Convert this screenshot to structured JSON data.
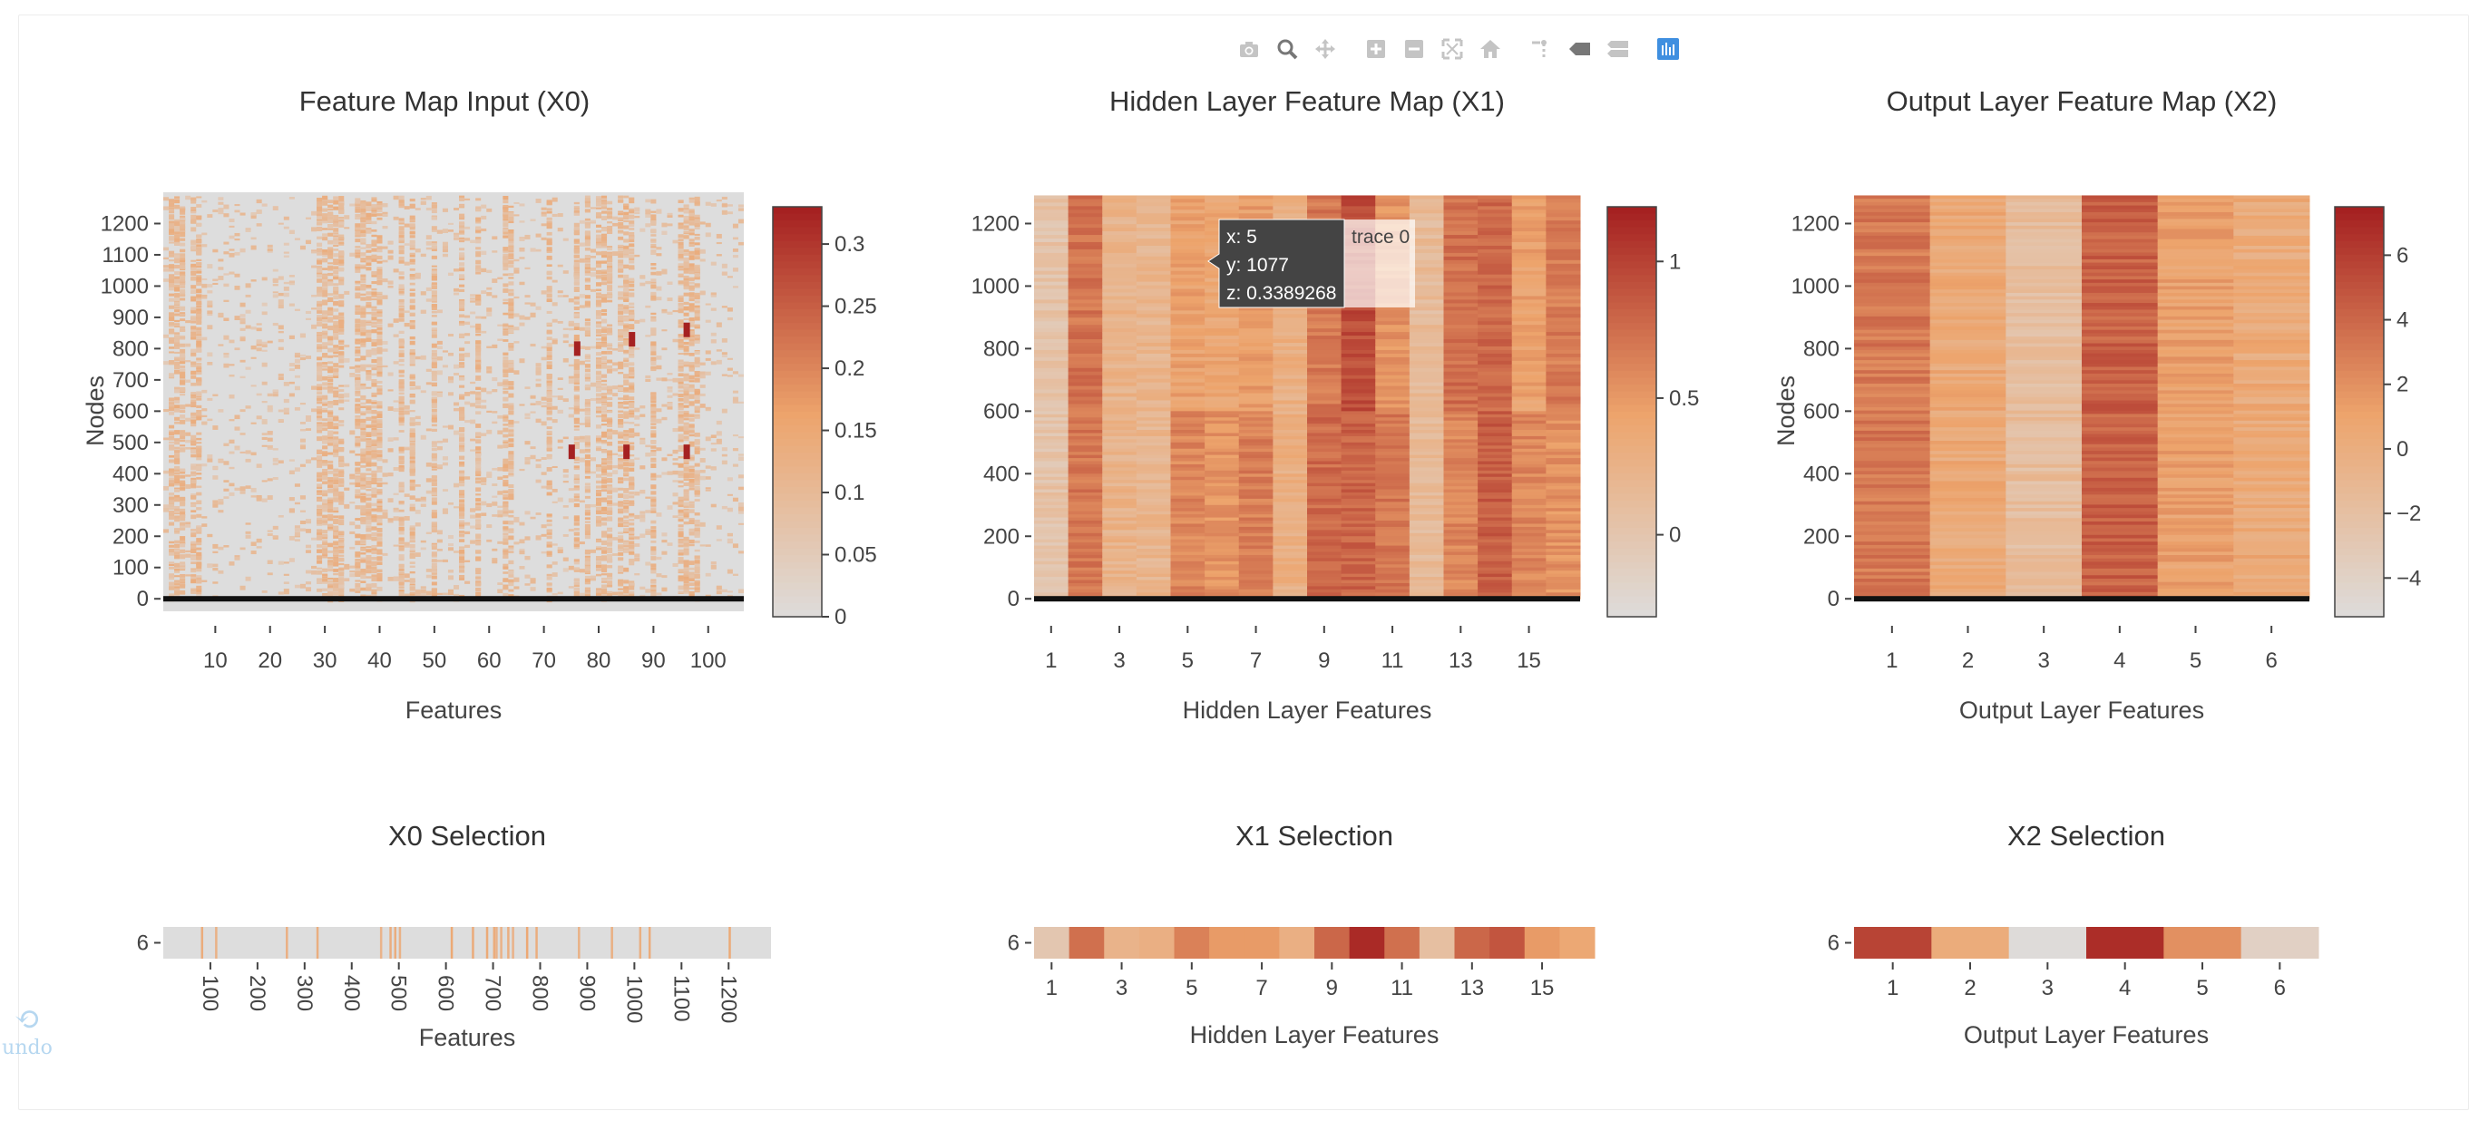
{
  "modebar": {
    "buttons": [
      "camera-icon",
      "zoom-icon",
      "pan-icon",
      "zoom-in-icon",
      "zoom-out-icon",
      "autoscale-icon",
      "reset-axes-icon",
      "spike-lines-icon",
      "hover-closest-icon",
      "hover-compare-icon",
      "plotly-logo-icon"
    ]
  },
  "undo": {
    "label": "undo"
  },
  "colors": {
    "low": "#dddddd",
    "mid": "#eda46c",
    "high": "#a52121",
    "tooltip_bg": "#444444"
  },
  "hover": {
    "x": "x: 5",
    "y": "y: 1077",
    "z": "z: 0.3389268",
    "trace": "trace 0"
  },
  "chart_data": [
    {
      "id": "x0",
      "type": "heatmap",
      "title": "Feature Map Input (X0)",
      "xlabel": "Features",
      "ylabel": "Nodes",
      "xlim": [
        0.5,
        106.5
      ],
      "ylim": [
        -40,
        1300
      ],
      "x_ticks": [
        "10",
        "20",
        "30",
        "40",
        "50",
        "60",
        "70",
        "80",
        "90",
        "100"
      ],
      "y_ticks": [
        "0",
        "100",
        "200",
        "300",
        "400",
        "500",
        "600",
        "700",
        "800",
        "900",
        "1000",
        "1100",
        "1200"
      ],
      "colorbar": {
        "ticks": [
          "0",
          "0.05",
          "0.1",
          "0.15",
          "0.2",
          "0.25",
          "0.3"
        ],
        "range": [
          0,
          0.33
        ]
      },
      "active_feature_columns": [
        2,
        3,
        4,
        6,
        7,
        29,
        30,
        31,
        32,
        33,
        36,
        37,
        38,
        39,
        40,
        44,
        46,
        50,
        55,
        58,
        63,
        64,
        71,
        76,
        78,
        80,
        81,
        82,
        84,
        85,
        86,
        90,
        95,
        96,
        97,
        98
      ],
      "hot_cells": [
        [
          75,
          470
        ],
        [
          85,
          470
        ],
        [
          96,
          470
        ],
        [
          76,
          800
        ],
        [
          86,
          830
        ],
        [
          96,
          860
        ]
      ],
      "value_max": 0.33
    },
    {
      "id": "x1",
      "type": "heatmap",
      "title": "Hidden Layer Feature Map (X1)",
      "xlabel": "Hidden Layer Features",
      "ylabel": "",
      "xlim": [
        0.5,
        16.5
      ],
      "ylim": [
        -40,
        1300
      ],
      "x_ticks": [
        "1",
        "3",
        "5",
        "7",
        "9",
        "11",
        "13",
        "15"
      ],
      "y_ticks": [
        "0",
        "200",
        "400",
        "600",
        "800",
        "1000",
        "1200"
      ],
      "colorbar": {
        "ticks": [
          "0",
          "0.5",
          "1"
        ],
        "range": [
          -0.3,
          1.2
        ]
      },
      "column_means_upper": [
        0.05,
        0.72,
        0.25,
        0.22,
        0.45,
        0.4,
        0.48,
        0.3,
        0.7,
        0.95,
        0.55,
        0.15,
        0.75,
        0.8,
        0.45,
        0.68
      ],
      "column_means_lower": [
        0.05,
        0.7,
        0.25,
        0.22,
        0.62,
        0.55,
        0.66,
        0.3,
        0.78,
        0.82,
        0.7,
        0.15,
        0.62,
        0.85,
        0.62,
        0.55
      ]
    },
    {
      "id": "x2",
      "type": "heatmap",
      "title": "Output Layer Feature Map (X2)",
      "xlabel": "Output Layer Features",
      "ylabel": "Nodes",
      "xlim": [
        0.5,
        6.5
      ],
      "ylim": [
        -40,
        1300
      ],
      "x_ticks": [
        "1",
        "2",
        "3",
        "4",
        "5",
        "6"
      ],
      "y_ticks": [
        "0",
        "200",
        "400",
        "600",
        "800",
        "1000",
        "1200"
      ],
      "colorbar": {
        "ticks": [
          "-4",
          "-2",
          "0",
          "2",
          "4",
          "6"
        ],
        "range": [
          -5.2,
          7.5
        ]
      },
      "column_means": [
        3.2,
        0.5,
        -1.6,
        4.4,
        1.2,
        0.4
      ]
    },
    {
      "id": "x0_sel",
      "type": "heatmap",
      "title": "X0 Selection",
      "xlabel": "Features",
      "y_tick": "6",
      "x_ticks": [
        "100",
        "200",
        "300",
        "400",
        "500",
        "600",
        "700",
        "800",
        "900",
        "1000",
        "1100",
        "1200"
      ],
      "xlim": [
        0,
        1290
      ],
      "line_positions": [
        80,
        110,
        260,
        325,
        460,
        480,
        490,
        500,
        610,
        655,
        685,
        700,
        705,
        715,
        730,
        740,
        770,
        790,
        880,
        950,
        1010,
        1030,
        1200
      ],
      "value_max": 0.33
    },
    {
      "id": "x1_sel",
      "type": "heatmap",
      "title": "X1 Selection",
      "xlabel": "Hidden Layer Features",
      "y_tick": "6",
      "x_ticks": [
        "1",
        "3",
        "5",
        "7",
        "9",
        "11",
        "13",
        "15"
      ],
      "xlim": [
        0.5,
        16.5
      ],
      "values": [
        0.0,
        0.75,
        0.25,
        0.3,
        0.65,
        0.5,
        0.5,
        0.3,
        0.8,
        1.15,
        0.75,
        0.1,
        0.8,
        0.9,
        0.5,
        0.4
      ],
      "range": [
        -0.3,
        1.2
      ]
    },
    {
      "id": "x2_sel",
      "type": "heatmap",
      "title": "X2 Selection",
      "xlabel": "Output Layer Features",
      "y_tick": "6",
      "x_ticks": [
        "1",
        "2",
        "3",
        "4",
        "5",
        "6"
      ],
      "xlim": [
        0.5,
        6.5
      ],
      "values": [
        5.8,
        0.3,
        -5.0,
        6.9,
        2.1,
        -3.8
      ],
      "range": [
        -5.2,
        7.5
      ]
    }
  ]
}
